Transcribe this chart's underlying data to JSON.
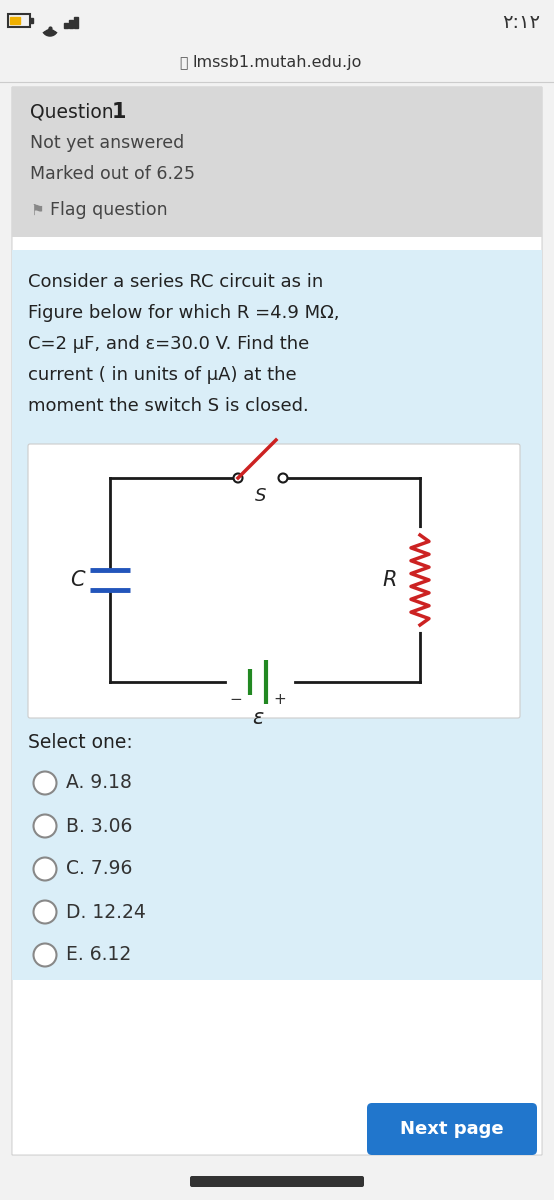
{
  "title_bar": "■ lmssb1.mutah.edu.jo",
  "time_text": "٢:١٢",
  "question_label": "Question",
  "question_num": "1",
  "not_answered": "Not yet answered",
  "marked_out": "Marked out of 6.25",
  "flag_question": "Flag question",
  "question_text_lines": [
    "Consider a series RC circuit as in",
    "Figure below for which R =4.9 MΩ,",
    "C=2 μF, and ε=30.0 V. Find the",
    "current ( in units of μA) at the",
    "moment the switch S is closed."
  ],
  "select_one": "Select one:",
  "options": [
    "A. 9.18",
    "B. 3.06",
    "C. 7.96",
    "D. 12.24",
    "E. 6.12"
  ],
  "next_page": "Next page",
  "bg_color": "#ebebeb",
  "page_bg": "#f2f2f2",
  "card_bg": "#ffffff",
  "header_bg": "#d8d8d8",
  "body_bg": "#daeef8",
  "circuit_bg": "#ffffff",
  "circuit_border": "#cccccc",
  "button_color": "#2176cc",
  "button_text_color": "#ffffff",
  "text_color": "#222222",
  "subtext_color": "#444444",
  "circuit_wire": "#1a1a1a",
  "cap_color": "#2255bb",
  "res_color": "#cc2222",
  "bat_color": "#228822",
  "switch_color": "#cc2222"
}
